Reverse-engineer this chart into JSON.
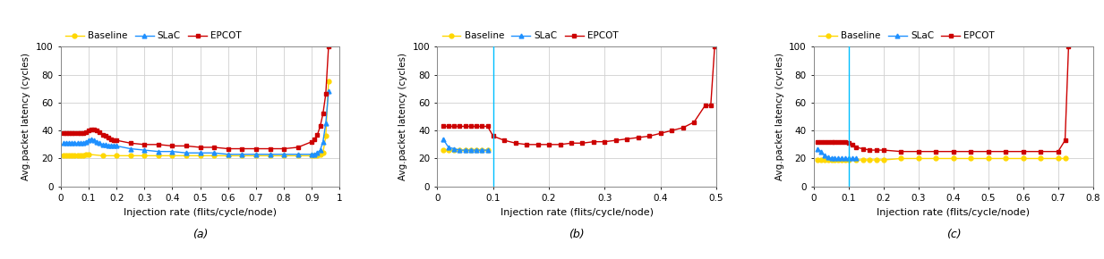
{
  "subplots": [
    {
      "label": "(a)",
      "xlim": [
        0,
        1.0
      ],
      "xticks": [
        0,
        0.1,
        0.2,
        0.3,
        0.4,
        0.5,
        0.6,
        0.7,
        0.8,
        0.9,
        1.0
      ],
      "xticklabels": [
        "0",
        "0.1",
        "0.2",
        "0.3",
        "0.4",
        "0.5",
        "0.6",
        "0.7",
        "0.8",
        "0.9",
        "1"
      ],
      "ylim": [
        0,
        100
      ],
      "yticks": [
        0,
        20,
        40,
        60,
        80,
        100
      ],
      "baseline_x": [
        0.01,
        0.02,
        0.03,
        0.04,
        0.05,
        0.06,
        0.07,
        0.08,
        0.09,
        0.1,
        0.15,
        0.2,
        0.25,
        0.3,
        0.35,
        0.4,
        0.45,
        0.5,
        0.55,
        0.6,
        0.65,
        0.7,
        0.75,
        0.8,
        0.85,
        0.9,
        0.91,
        0.92,
        0.93,
        0.94,
        0.95,
        0.96
      ],
      "baseline_y": [
        22,
        22,
        22,
        22,
        22,
        22,
        22,
        22,
        23,
        23,
        22,
        22,
        22,
        22,
        22,
        22,
        22,
        22,
        22,
        22,
        22,
        22,
        22,
        22,
        22,
        22,
        22,
        22,
        23,
        24,
        36,
        75
      ],
      "slac_x": [
        0.01,
        0.02,
        0.03,
        0.04,
        0.05,
        0.06,
        0.07,
        0.08,
        0.09,
        0.1,
        0.11,
        0.12,
        0.13,
        0.14,
        0.15,
        0.16,
        0.17,
        0.18,
        0.19,
        0.2,
        0.25,
        0.3,
        0.35,
        0.4,
        0.45,
        0.5,
        0.55,
        0.6,
        0.65,
        0.7,
        0.75,
        0.8,
        0.85,
        0.9,
        0.91,
        0.92,
        0.93,
        0.94,
        0.95,
        0.96
      ],
      "slac_y": [
        31,
        31,
        31,
        31,
        31,
        31,
        31,
        31,
        32,
        33,
        34,
        33,
        32,
        31,
        30,
        30,
        29,
        29,
        29,
        29,
        27,
        26,
        25,
        25,
        24,
        24,
        24,
        23,
        23,
        23,
        23,
        23,
        23,
        23,
        23,
        24,
        26,
        32,
        45,
        68
      ],
      "epcot_x": [
        0.01,
        0.02,
        0.03,
        0.04,
        0.05,
        0.06,
        0.07,
        0.08,
        0.09,
        0.1,
        0.11,
        0.12,
        0.13,
        0.14,
        0.15,
        0.16,
        0.17,
        0.18,
        0.19,
        0.2,
        0.25,
        0.3,
        0.35,
        0.4,
        0.45,
        0.5,
        0.55,
        0.6,
        0.65,
        0.7,
        0.75,
        0.8,
        0.85,
        0.9,
        0.91,
        0.92,
        0.93,
        0.94,
        0.95,
        0.96
      ],
      "epcot_y": [
        38,
        38,
        38,
        38,
        38,
        38,
        38,
        38,
        39,
        40,
        41,
        41,
        40,
        39,
        37,
        36,
        35,
        34,
        33,
        33,
        31,
        30,
        30,
        29,
        29,
        28,
        28,
        27,
        27,
        27,
        27,
        27,
        28,
        32,
        34,
        37,
        43,
        52,
        66,
        100
      ],
      "vline_x": null,
      "vline_color": null
    },
    {
      "label": "(b)",
      "xlim": [
        0,
        0.5
      ],
      "xticks": [
        0,
        0.1,
        0.2,
        0.3,
        0.4,
        0.5
      ],
      "xticklabels": [
        "0",
        "0.1",
        "0.2",
        "0.3",
        "0.4",
        "0.5"
      ],
      "ylim": [
        0,
        100
      ],
      "yticks": [
        0,
        20,
        40,
        60,
        80,
        100
      ],
      "baseline_x": [
        0.01,
        0.02,
        0.03,
        0.04,
        0.05,
        0.06,
        0.07,
        0.08,
        0.09
      ],
      "baseline_y": [
        26,
        26,
        26,
        26,
        26,
        26,
        26,
        26,
        26
      ],
      "slac_x": [
        0.01,
        0.02,
        0.03,
        0.04,
        0.05,
        0.06,
        0.07,
        0.08,
        0.09
      ],
      "slac_y": [
        34,
        28,
        27,
        26,
        26,
        26,
        26,
        26,
        26
      ],
      "epcot_x": [
        0.01,
        0.02,
        0.03,
        0.04,
        0.05,
        0.06,
        0.07,
        0.08,
        0.09,
        0.1,
        0.12,
        0.14,
        0.16,
        0.18,
        0.2,
        0.22,
        0.24,
        0.26,
        0.28,
        0.3,
        0.32,
        0.34,
        0.36,
        0.38,
        0.4,
        0.42,
        0.44,
        0.46,
        0.48,
        0.49,
        0.497
      ],
      "epcot_y": [
        43,
        43,
        43,
        43,
        43,
        43,
        43,
        43,
        43,
        36,
        33,
        31,
        30,
        30,
        30,
        30,
        31,
        31,
        32,
        32,
        33,
        34,
        35,
        36,
        38,
        40,
        42,
        46,
        58,
        58,
        100
      ],
      "vline_x": 0.1,
      "vline_color": "#00BFFF"
    },
    {
      "label": "(c)",
      "xlim": [
        0,
        0.8
      ],
      "xticks": [
        0,
        0.1,
        0.2,
        0.3,
        0.4,
        0.5,
        0.6,
        0.7,
        0.8
      ],
      "xticklabels": [
        "0",
        "0.1",
        "0.2",
        "0.3",
        "0.4",
        "0.5",
        "0.6",
        "0.7",
        "0.8"
      ],
      "ylim": [
        0,
        100
      ],
      "yticks": [
        0,
        20,
        40,
        60,
        80,
        100
      ],
      "baseline_x": [
        0.01,
        0.02,
        0.03,
        0.04,
        0.05,
        0.06,
        0.07,
        0.08,
        0.09,
        0.1,
        0.12,
        0.14,
        0.16,
        0.18,
        0.2,
        0.25,
        0.3,
        0.35,
        0.4,
        0.45,
        0.5,
        0.55,
        0.6,
        0.65,
        0.7,
        0.72
      ],
      "baseline_y": [
        19,
        19,
        19,
        19,
        19,
        19,
        19,
        19,
        19,
        19,
        19,
        19,
        19,
        19,
        19,
        20,
        20,
        20,
        20,
        20,
        20,
        20,
        20,
        20,
        20,
        20
      ],
      "slac_x": [
        0.01,
        0.02,
        0.03,
        0.04,
        0.05,
        0.06,
        0.07,
        0.08,
        0.09,
        0.1,
        0.11,
        0.12
      ],
      "slac_y": [
        27,
        25,
        22,
        21,
        20,
        20,
        20,
        20,
        20,
        20,
        20,
        20
      ],
      "epcot_x": [
        0.01,
        0.02,
        0.03,
        0.04,
        0.05,
        0.06,
        0.07,
        0.08,
        0.09,
        0.1,
        0.11,
        0.12,
        0.14,
        0.16,
        0.18,
        0.2,
        0.25,
        0.3,
        0.35,
        0.4,
        0.45,
        0.5,
        0.55,
        0.6,
        0.65,
        0.7,
        0.72,
        0.73
      ],
      "epcot_y": [
        32,
        32,
        32,
        32,
        32,
        32,
        32,
        32,
        32,
        31,
        30,
        28,
        27,
        26,
        26,
        26,
        25,
        25,
        25,
        25,
        25,
        25,
        25,
        25,
        25,
        25,
        33,
        100
      ],
      "vline_x": 0.1,
      "vline_color": "#00BFFF"
    }
  ],
  "legend_labels": [
    "Baseline",
    "SLaC",
    "EPCOT"
  ],
  "baseline_color": "#FFD700",
  "baseline_marker": "o",
  "slac_color": "#1E90FF",
  "slac_marker": "^",
  "epcot_color": "#CC0000",
  "epcot_marker": "s",
  "ylabel": "Avg.packet latency (cycles)",
  "xlabel": "Injection rate (flits/cycle/node)",
  "grid_color": "#D0D0D0",
  "background_color": "#FFFFFF",
  "linewidth": 1.0,
  "markersize": 3.5
}
